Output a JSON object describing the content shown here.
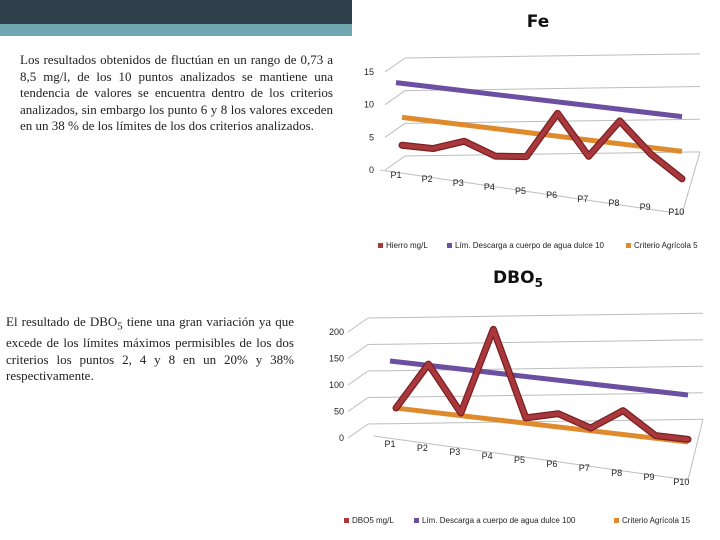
{
  "slide": {
    "paragraph1": "Los resultados obtenidos de fluctúan en un rango de 0,73 a 8,5 mg/l, de los 10 puntos analizados se mantiene una tendencia de valores se encuentra dentro de los criterios analizados, sin embargo los punto 6 y 8 los valores exceden en un 38 % de los límites de los dos criterios analizados.",
    "paragraph2_prefix": "El resultado de DBO",
    "paragraph2_sub": "5",
    "paragraph2_suffix": " tiene una gran variación ya que excede de los límites máximos permisibles de los dos criterios los puntos 2, 4 y 8 en un 20% y 38% respectivamente."
  },
  "chart_data": [
    {
      "type": "line",
      "title": "Fe",
      "categories": [
        "P1",
        "P2",
        "P3",
        "P4",
        "P5",
        "P6",
        "P7",
        "P8",
        "P9",
        "P10"
      ],
      "yticks": [
        "0",
        "5",
        "10",
        "15"
      ],
      "ylim": [
        0,
        15
      ],
      "series": [
        {
          "name": "Hierro mg/L",
          "values": [
            0.73,
            0.8,
            2.5,
            0.8,
            1.3,
            8.5,
            2.5,
            8.5,
            4.0,
            0.8
          ],
          "color": "#a8383b"
        },
        {
          "name": "Lím. Descarga a cuerpo de agua dulce 10",
          "values": [
            10,
            10,
            10,
            10,
            10,
            10,
            10,
            10,
            10,
            10
          ],
          "color": "#6b4fa0"
        },
        {
          "name": "Criterio Agrícola 5",
          "values": [
            5,
            5,
            5,
            5,
            5,
            5,
            5,
            5,
            5,
            5
          ],
          "color": "#e08a2e"
        }
      ]
    },
    {
      "type": "line",
      "title_main": "DBO",
      "title_sub": "5",
      "categories": [
        "P1",
        "P2",
        "P3",
        "P4",
        "P5",
        "P6",
        "P7",
        "P8",
        "P9",
        "P10"
      ],
      "yticks": [
        "0",
        "50",
        "100",
        "150",
        "200"
      ],
      "ylim": [
        0,
        200
      ],
      "series": [
        {
          "name": "DBO5 mg/L",
          "values": [
            15,
            105,
            20,
            185,
            25,
            40,
            20,
            60,
            20,
            20
          ],
          "color": "#a8383b"
        },
        {
          "name": "Lím. Descarga a cuerpo de agua dulce 100",
          "values": [
            100,
            100,
            100,
            100,
            100,
            100,
            100,
            100,
            100,
            100
          ],
          "color": "#6b4fa0"
        },
        {
          "name": "Criterio Agrícola 15",
          "values": [
            15,
            15,
            15,
            15,
            15,
            15,
            15,
            15,
            15,
            15
          ],
          "color": "#e08a2e"
        }
      ]
    }
  ]
}
